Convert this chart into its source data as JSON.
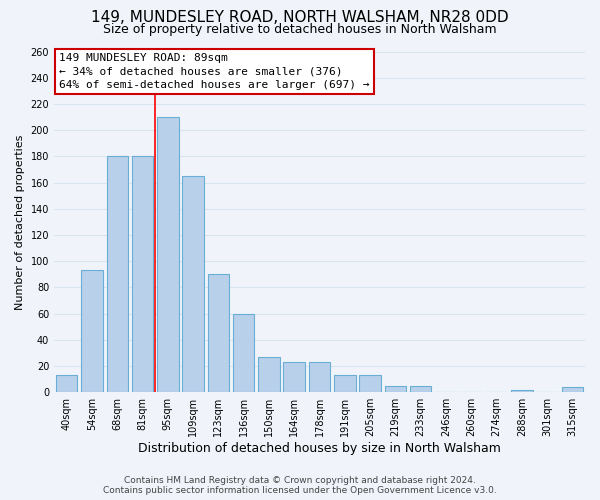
{
  "title": "149, MUNDESLEY ROAD, NORTH WALSHAM, NR28 0DD",
  "subtitle": "Size of property relative to detached houses in North Walsham",
  "xlabel": "Distribution of detached houses by size in North Walsham",
  "ylabel": "Number of detached properties",
  "bar_labels": [
    "40sqm",
    "54sqm",
    "68sqm",
    "81sqm",
    "95sqm",
    "109sqm",
    "123sqm",
    "136sqm",
    "150sqm",
    "164sqm",
    "178sqm",
    "191sqm",
    "205sqm",
    "219sqm",
    "233sqm",
    "246sqm",
    "260sqm",
    "274sqm",
    "288sqm",
    "301sqm",
    "315sqm"
  ],
  "bar_values": [
    13,
    93,
    180,
    180,
    210,
    165,
    90,
    60,
    27,
    23,
    23,
    13,
    13,
    5,
    5,
    0,
    0,
    0,
    2,
    0,
    4
  ],
  "bar_color": "#b8d0ea",
  "bar_edge_color": "#6aaed6",
  "red_line_x": 3.5,
  "ylim": [
    0,
    260
  ],
  "yticks": [
    0,
    20,
    40,
    60,
    80,
    100,
    120,
    140,
    160,
    180,
    200,
    220,
    240,
    260
  ],
  "annotation_title": "149 MUNDESLEY ROAD: 89sqm",
  "annotation_line1": "← 34% of detached houses are smaller (376)",
  "annotation_line2": "64% of semi-detached houses are larger (697) →",
  "annotation_box_color": "#ffffff",
  "annotation_box_edge": "#cc0000",
  "footer_line1": "Contains HM Land Registry data © Crown copyright and database right 2024.",
  "footer_line2": "Contains public sector information licensed under the Open Government Licence v3.0.",
  "background_color": "#f0f4fa",
  "plot_background": "#f0f4fa",
  "grid_color": "#d8e4f0",
  "title_fontsize": 11,
  "subtitle_fontsize": 9,
  "xlabel_fontsize": 9,
  "ylabel_fontsize": 8,
  "tick_fontsize": 7,
  "annotation_fontsize": 8,
  "footer_fontsize": 6.5
}
